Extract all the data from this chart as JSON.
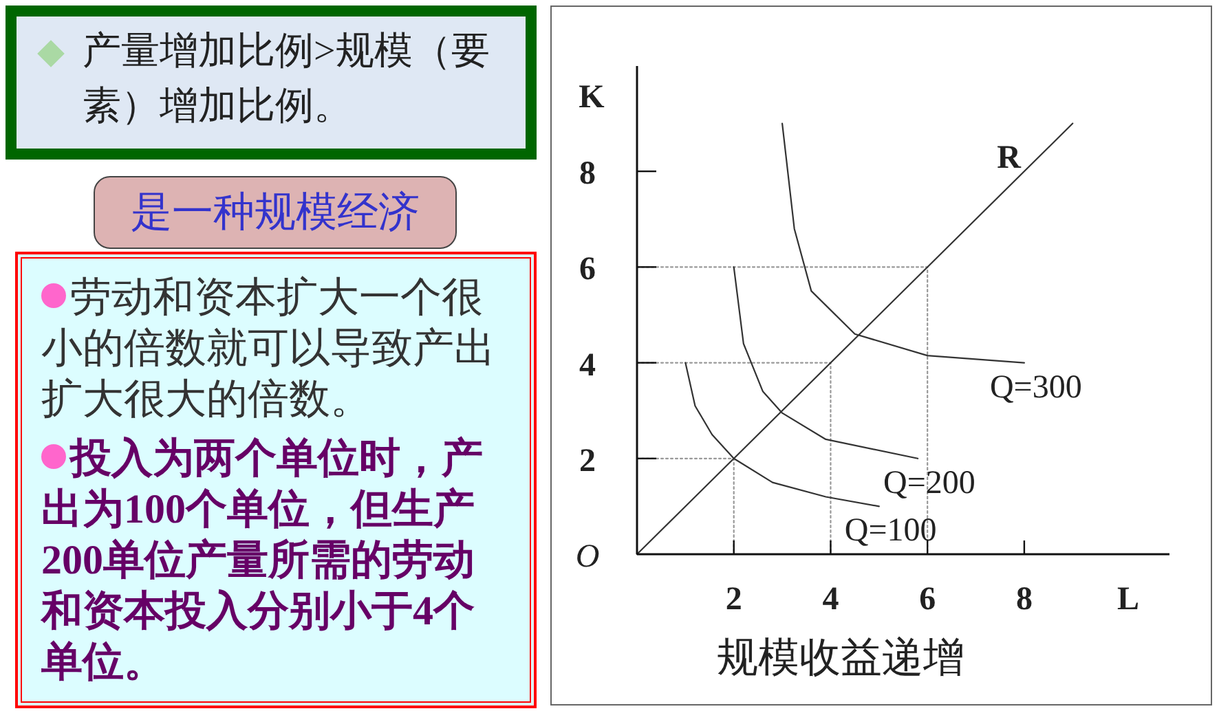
{
  "chart_data": {
    "type": "line",
    "title": "规模收益递增",
    "xlabel": "L",
    "ylabel": "K",
    "annotations": [
      "产量增加比例>规模（要素）增加比例。",
      "是一种规模经济",
      "劳动和资本扩大一个很小的倍数就可以导致产出扩大很大的倍数。",
      "投入为两个单位时，产出为100个单位，但生产200单位产量所需的劳动和资本投入分别小于4个单位。"
    ],
    "xlim": [
      0,
      11
    ],
    "ylim": [
      0,
      10.2
    ],
    "xticks": [
      2,
      4,
      6,
      8
    ],
    "yticks": [
      {
        "value": 0,
        "label": "O"
      },
      2,
      4,
      6,
      8
    ],
    "series": [
      {
        "color": "#999999",
        "line_style": "dotted",
        "x": [
          0,
          2,
          2
        ],
        "values": [
          2,
          2,
          0
        ]
      },
      {
        "color": "#999999",
        "line_style": "dotted",
        "x": [
          0,
          4,
          4
        ],
        "values": [
          4,
          4,
          0
        ]
      },
      {
        "color": "#999999",
        "line_style": "dotted",
        "x": [
          0,
          6,
          6
        ],
        "values": [
          6,
          6,
          0
        ]
      },
      {
        "name": "R",
        "color": "#333333",
        "x": [
          0,
          9
        ],
        "values": [
          0,
          9
        ]
      },
      {
        "name": "Q=100",
        "color": "#333333",
        "x": [
          1,
          1.2,
          1.55,
          2,
          2.8,
          3.9,
          5
        ],
        "values": [
          4,
          3.1,
          2.5,
          2,
          1.5,
          1.2,
          1
        ]
      },
      {
        "name": "Q=200",
        "color": "#333333",
        "x": [
          2,
          2.2,
          2.6,
          3,
          3.9,
          5.8
        ],
        "values": [
          6,
          4.4,
          3.4,
          2.95,
          2.4,
          2
        ]
      },
      {
        "name": "Q=300",
        "color": "#333333",
        "x": [
          3,
          3.25,
          3.6,
          4.5,
          6,
          8
        ],
        "values": [
          9,
          6.8,
          5.5,
          4.6,
          4.15,
          4
        ]
      }
    ]
  }
}
